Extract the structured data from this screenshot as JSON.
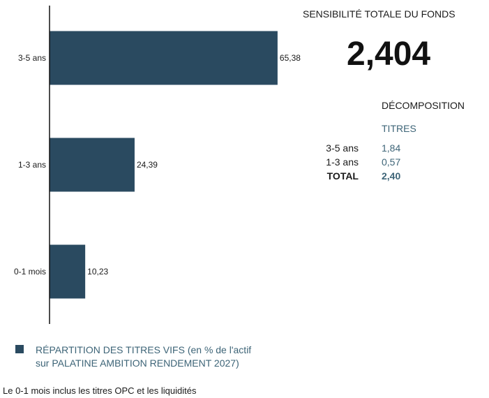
{
  "chart_data": {
    "type": "bar",
    "orientation": "horizontal",
    "categories": [
      "3-5 ans",
      "1-3 ans",
      "0-1 mois"
    ],
    "values": [
      65.38,
      24.39,
      10.23
    ],
    "value_labels": [
      "65,38",
      "24,39",
      "10,23"
    ],
    "xlim": [
      0,
      100
    ],
    "grid": false,
    "legend": "bottom-left",
    "color": "#2a4a60"
  },
  "legend": {
    "line1": "RÉPARTITION DES TITRES VIFS  (en % de l'actif",
    "line2": "sur PALATINE AMBITION RENDEMENT 2027)"
  },
  "footnote": "Le 0-1 mois inclus les titres OPC et les liquidités",
  "sensitivity": {
    "title": "SENSIBILITÉ TOTALE DU FONDS",
    "value": "2,404",
    "decomposition_title": "DÉCOMPOSITION",
    "column_header": "TITRES",
    "rows": [
      {
        "label": "3-5 ans",
        "value": "1,84"
      },
      {
        "label": "1-3 ans",
        "value": "0,57"
      },
      {
        "label": "TOTAL",
        "value": "2,40"
      }
    ]
  },
  "colors": {
    "bar": "#2a4a60",
    "accent_text": "#3d6477"
  }
}
